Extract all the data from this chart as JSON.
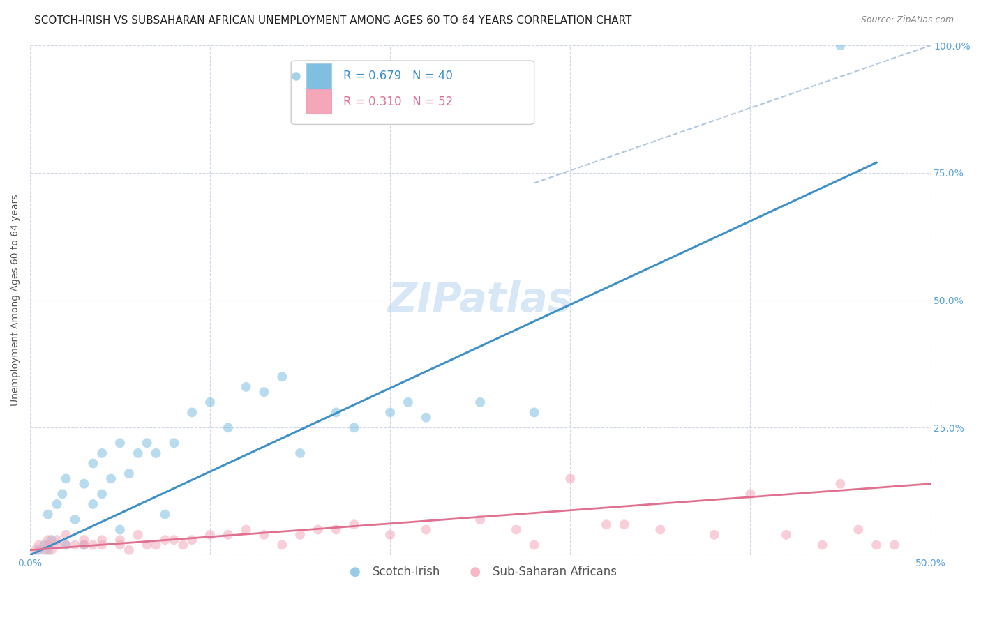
{
  "title": "SCOTCH-IRISH VS SUBSAHARAN AFRICAN UNEMPLOYMENT AMONG AGES 60 TO 64 YEARS CORRELATION CHART",
  "source": "Source: ZipAtlas.com",
  "ylabel": "Unemployment Among Ages 60 to 64 years",
  "xlim": [
    0,
    0.5
  ],
  "ylim": [
    0,
    1.0
  ],
  "xticks": [
    0.0,
    0.1,
    0.2,
    0.3,
    0.4,
    0.5
  ],
  "yticks": [
    0.0,
    0.25,
    0.5,
    0.75,
    1.0
  ],
  "xticklabels": [
    "0.0%",
    "",
    "",
    "",
    "",
    "50.0%"
  ],
  "yticklabels": [
    "",
    "25.0%",
    "50.0%",
    "75.0%",
    "100.0%"
  ],
  "watermark": "ZIPatlas",
  "blue_R": 0.679,
  "blue_N": 40,
  "pink_R": 0.31,
  "pink_N": 52,
  "blue_color": "#7fbfdf",
  "pink_color": "#f4a7b9",
  "blue_line_color": "#4090c8",
  "pink_line_color": "#e07090",
  "dashed_line_color": "#b0c8e0",
  "legend_label_blue": "Scotch-Irish",
  "legend_label_pink": "Sub-Saharan Africans",
  "blue_scatter_x": [
    0.005,
    0.008,
    0.01,
    0.01,
    0.012,
    0.015,
    0.018,
    0.02,
    0.02,
    0.025,
    0.03,
    0.03,
    0.035,
    0.035,
    0.04,
    0.04,
    0.045,
    0.05,
    0.05,
    0.055,
    0.06,
    0.065,
    0.07,
    0.075,
    0.08,
    0.09,
    0.1,
    0.11,
    0.12,
    0.13,
    0.14,
    0.15,
    0.17,
    0.18,
    0.2,
    0.21,
    0.22,
    0.25,
    0.28,
    0.45
  ],
  "blue_scatter_y": [
    0.01,
    0.02,
    0.01,
    0.08,
    0.03,
    0.1,
    0.12,
    0.02,
    0.15,
    0.07,
    0.02,
    0.14,
    0.1,
    0.18,
    0.12,
    0.2,
    0.15,
    0.22,
    0.05,
    0.16,
    0.2,
    0.22,
    0.2,
    0.08,
    0.22,
    0.28,
    0.3,
    0.25,
    0.33,
    0.32,
    0.35,
    0.2,
    0.28,
    0.25,
    0.28,
    0.3,
    0.27,
    0.3,
    0.28,
    1.0
  ],
  "pink_scatter_x": [
    0.003,
    0.005,
    0.008,
    0.01,
    0.01,
    0.012,
    0.015,
    0.015,
    0.02,
    0.02,
    0.025,
    0.03,
    0.03,
    0.035,
    0.04,
    0.04,
    0.05,
    0.05,
    0.055,
    0.06,
    0.065,
    0.07,
    0.075,
    0.08,
    0.085,
    0.09,
    0.1,
    0.11,
    0.12,
    0.13,
    0.14,
    0.15,
    0.16,
    0.17,
    0.18,
    0.2,
    0.22,
    0.25,
    0.27,
    0.28,
    0.3,
    0.32,
    0.33,
    0.35,
    0.38,
    0.4,
    0.42,
    0.44,
    0.45,
    0.46,
    0.47,
    0.48
  ],
  "pink_scatter_y": [
    0.01,
    0.02,
    0.01,
    0.02,
    0.03,
    0.01,
    0.02,
    0.03,
    0.02,
    0.04,
    0.02,
    0.02,
    0.03,
    0.02,
    0.03,
    0.02,
    0.02,
    0.03,
    0.01,
    0.04,
    0.02,
    0.02,
    0.03,
    0.03,
    0.02,
    0.03,
    0.04,
    0.04,
    0.05,
    0.04,
    0.02,
    0.04,
    0.05,
    0.05,
    0.06,
    0.04,
    0.05,
    0.07,
    0.05,
    0.02,
    0.15,
    0.06,
    0.06,
    0.05,
    0.04,
    0.12,
    0.04,
    0.02,
    0.14,
    0.05,
    0.02,
    0.02
  ],
  "blue_line_x": [
    0.0,
    0.47
  ],
  "blue_line_y": [
    0.0,
    0.77
  ],
  "pink_line_x": [
    0.0,
    0.5
  ],
  "pink_line_y": [
    0.01,
    0.14
  ],
  "dashed_line_x": [
    0.28,
    0.5
  ],
  "dashed_line_y": [
    0.73,
    1.0
  ],
  "title_fontsize": 11,
  "source_fontsize": 9,
  "axis_label_fontsize": 10,
  "tick_fontsize": 10,
  "legend_fontsize": 12,
  "watermark_fontsize": 42,
  "scatter_size": 100,
  "scatter_alpha": 0.55,
  "background_color": "#ffffff",
  "grid_color": "#d0d8e8",
  "tick_color": "#5ba3d9",
  "ylabel_color": "#555555"
}
